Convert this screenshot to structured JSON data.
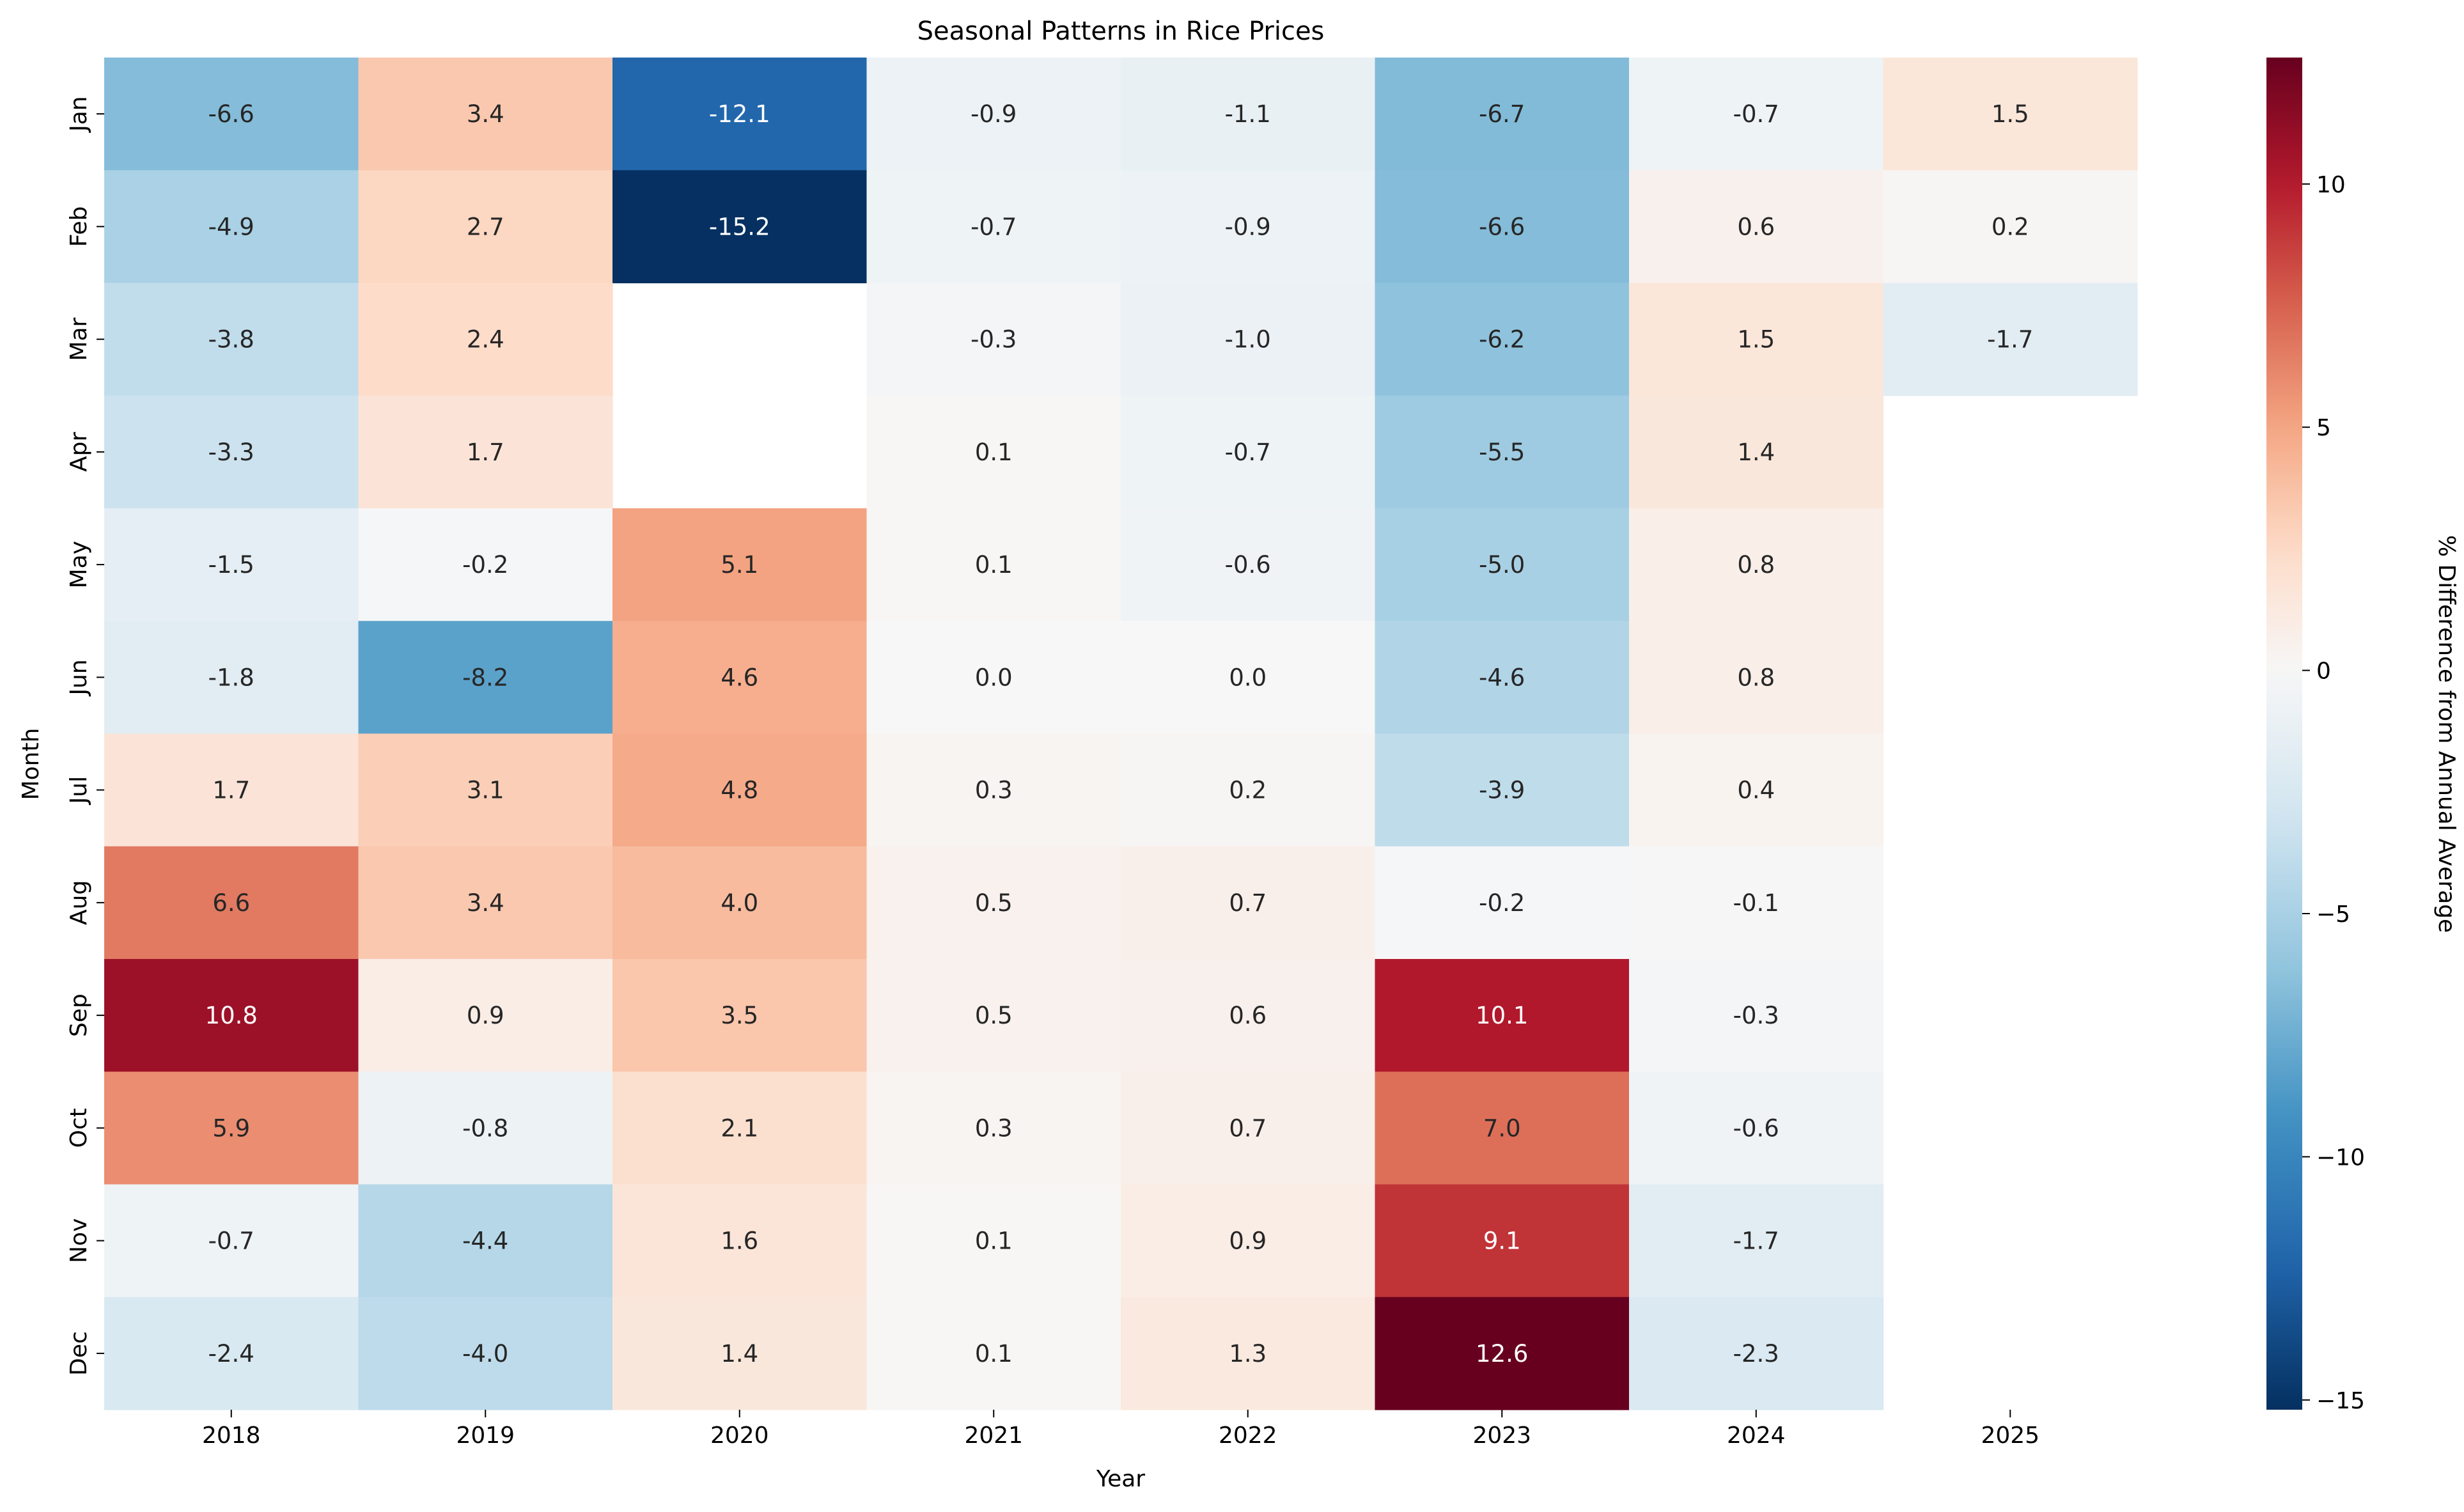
{
  "chart_data": {
    "type": "heatmap",
    "title": "Seasonal Patterns in Rice Prices",
    "xlabel": "Year",
    "ylabel": "Month",
    "x_categories": [
      "2018",
      "2019",
      "2020",
      "2021",
      "2022",
      "2023",
      "2024",
      "2025"
    ],
    "y_categories": [
      "Jan",
      "Feb",
      "Mar",
      "Apr",
      "May",
      "Jun",
      "Jul",
      "Aug",
      "Sep",
      "Oct",
      "Nov",
      "Dec"
    ],
    "values": [
      [
        -6.6,
        3.4,
        -12.1,
        -0.9,
        -1.1,
        -6.7,
        -0.7,
        1.5
      ],
      [
        -4.9,
        2.7,
        -15.2,
        -0.7,
        -0.9,
        -6.6,
        0.6,
        0.2
      ],
      [
        -3.8,
        2.4,
        null,
        -0.3,
        -1.0,
        -6.2,
        1.5,
        -1.7
      ],
      [
        -3.3,
        1.7,
        null,
        0.1,
        -0.7,
        -5.5,
        1.4,
        null
      ],
      [
        -1.5,
        -0.2,
        5.1,
        0.1,
        -0.6,
        -5.0,
        0.8,
        null
      ],
      [
        -1.8,
        -8.2,
        4.6,
        -0.0,
        -0.0,
        -4.6,
        0.8,
        null
      ],
      [
        1.7,
        3.1,
        4.8,
        0.3,
        0.2,
        -3.9,
        0.4,
        null
      ],
      [
        6.6,
        3.4,
        4.0,
        0.5,
        0.7,
        -0.2,
        -0.1,
        null
      ],
      [
        10.8,
        0.9,
        3.5,
        0.5,
        0.6,
        10.1,
        -0.3,
        null
      ],
      [
        5.9,
        -0.8,
        2.1,
        0.3,
        0.7,
        7.0,
        -0.6,
        null
      ],
      [
        -0.7,
        -4.4,
        1.6,
        0.1,
        0.9,
        9.1,
        -1.7,
        null
      ],
      [
        -2.4,
        -4.0,
        1.4,
        0.1,
        1.3,
        12.6,
        -2.3,
        null
      ]
    ],
    "colormap": "RdBu_r",
    "vmin": -15.2,
    "vmax": 12.6,
    "colorbar": {
      "label": "% Difference from Annual Average",
      "ticks": [
        -15,
        -10,
        -5,
        0,
        5,
        10
      ],
      "tick_labels": [
        "−15",
        "−10",
        "−5",
        "0",
        "5",
        "10"
      ]
    }
  }
}
